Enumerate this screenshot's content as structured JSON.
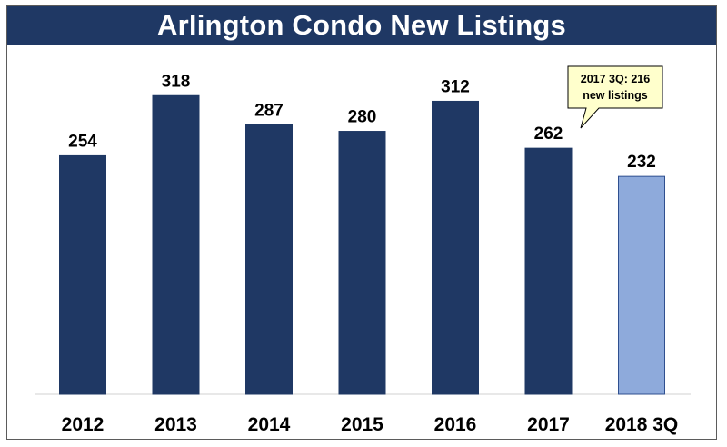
{
  "chart_data": {
    "type": "bar",
    "title": "Arlington Condo New Listings",
    "categories": [
      "2012",
      "2013",
      "2014",
      "2015",
      "2016",
      "2017",
      "2018 3Q"
    ],
    "values": [
      254,
      318,
      287,
      280,
      312,
      262,
      232
    ],
    "ylim": [
      0,
      355
    ],
    "grid": false,
    "legend": "none",
    "colors": {
      "title_bg": "#1f3864",
      "bar": "#1f3864",
      "bar_highlight": "#8eaadb",
      "callout_bg": "#ffffcc"
    },
    "highlight_index": 6,
    "annotation": {
      "lines": [
        "2017 3Q: 216",
        "new listings"
      ],
      "target_category": "2017"
    }
  }
}
